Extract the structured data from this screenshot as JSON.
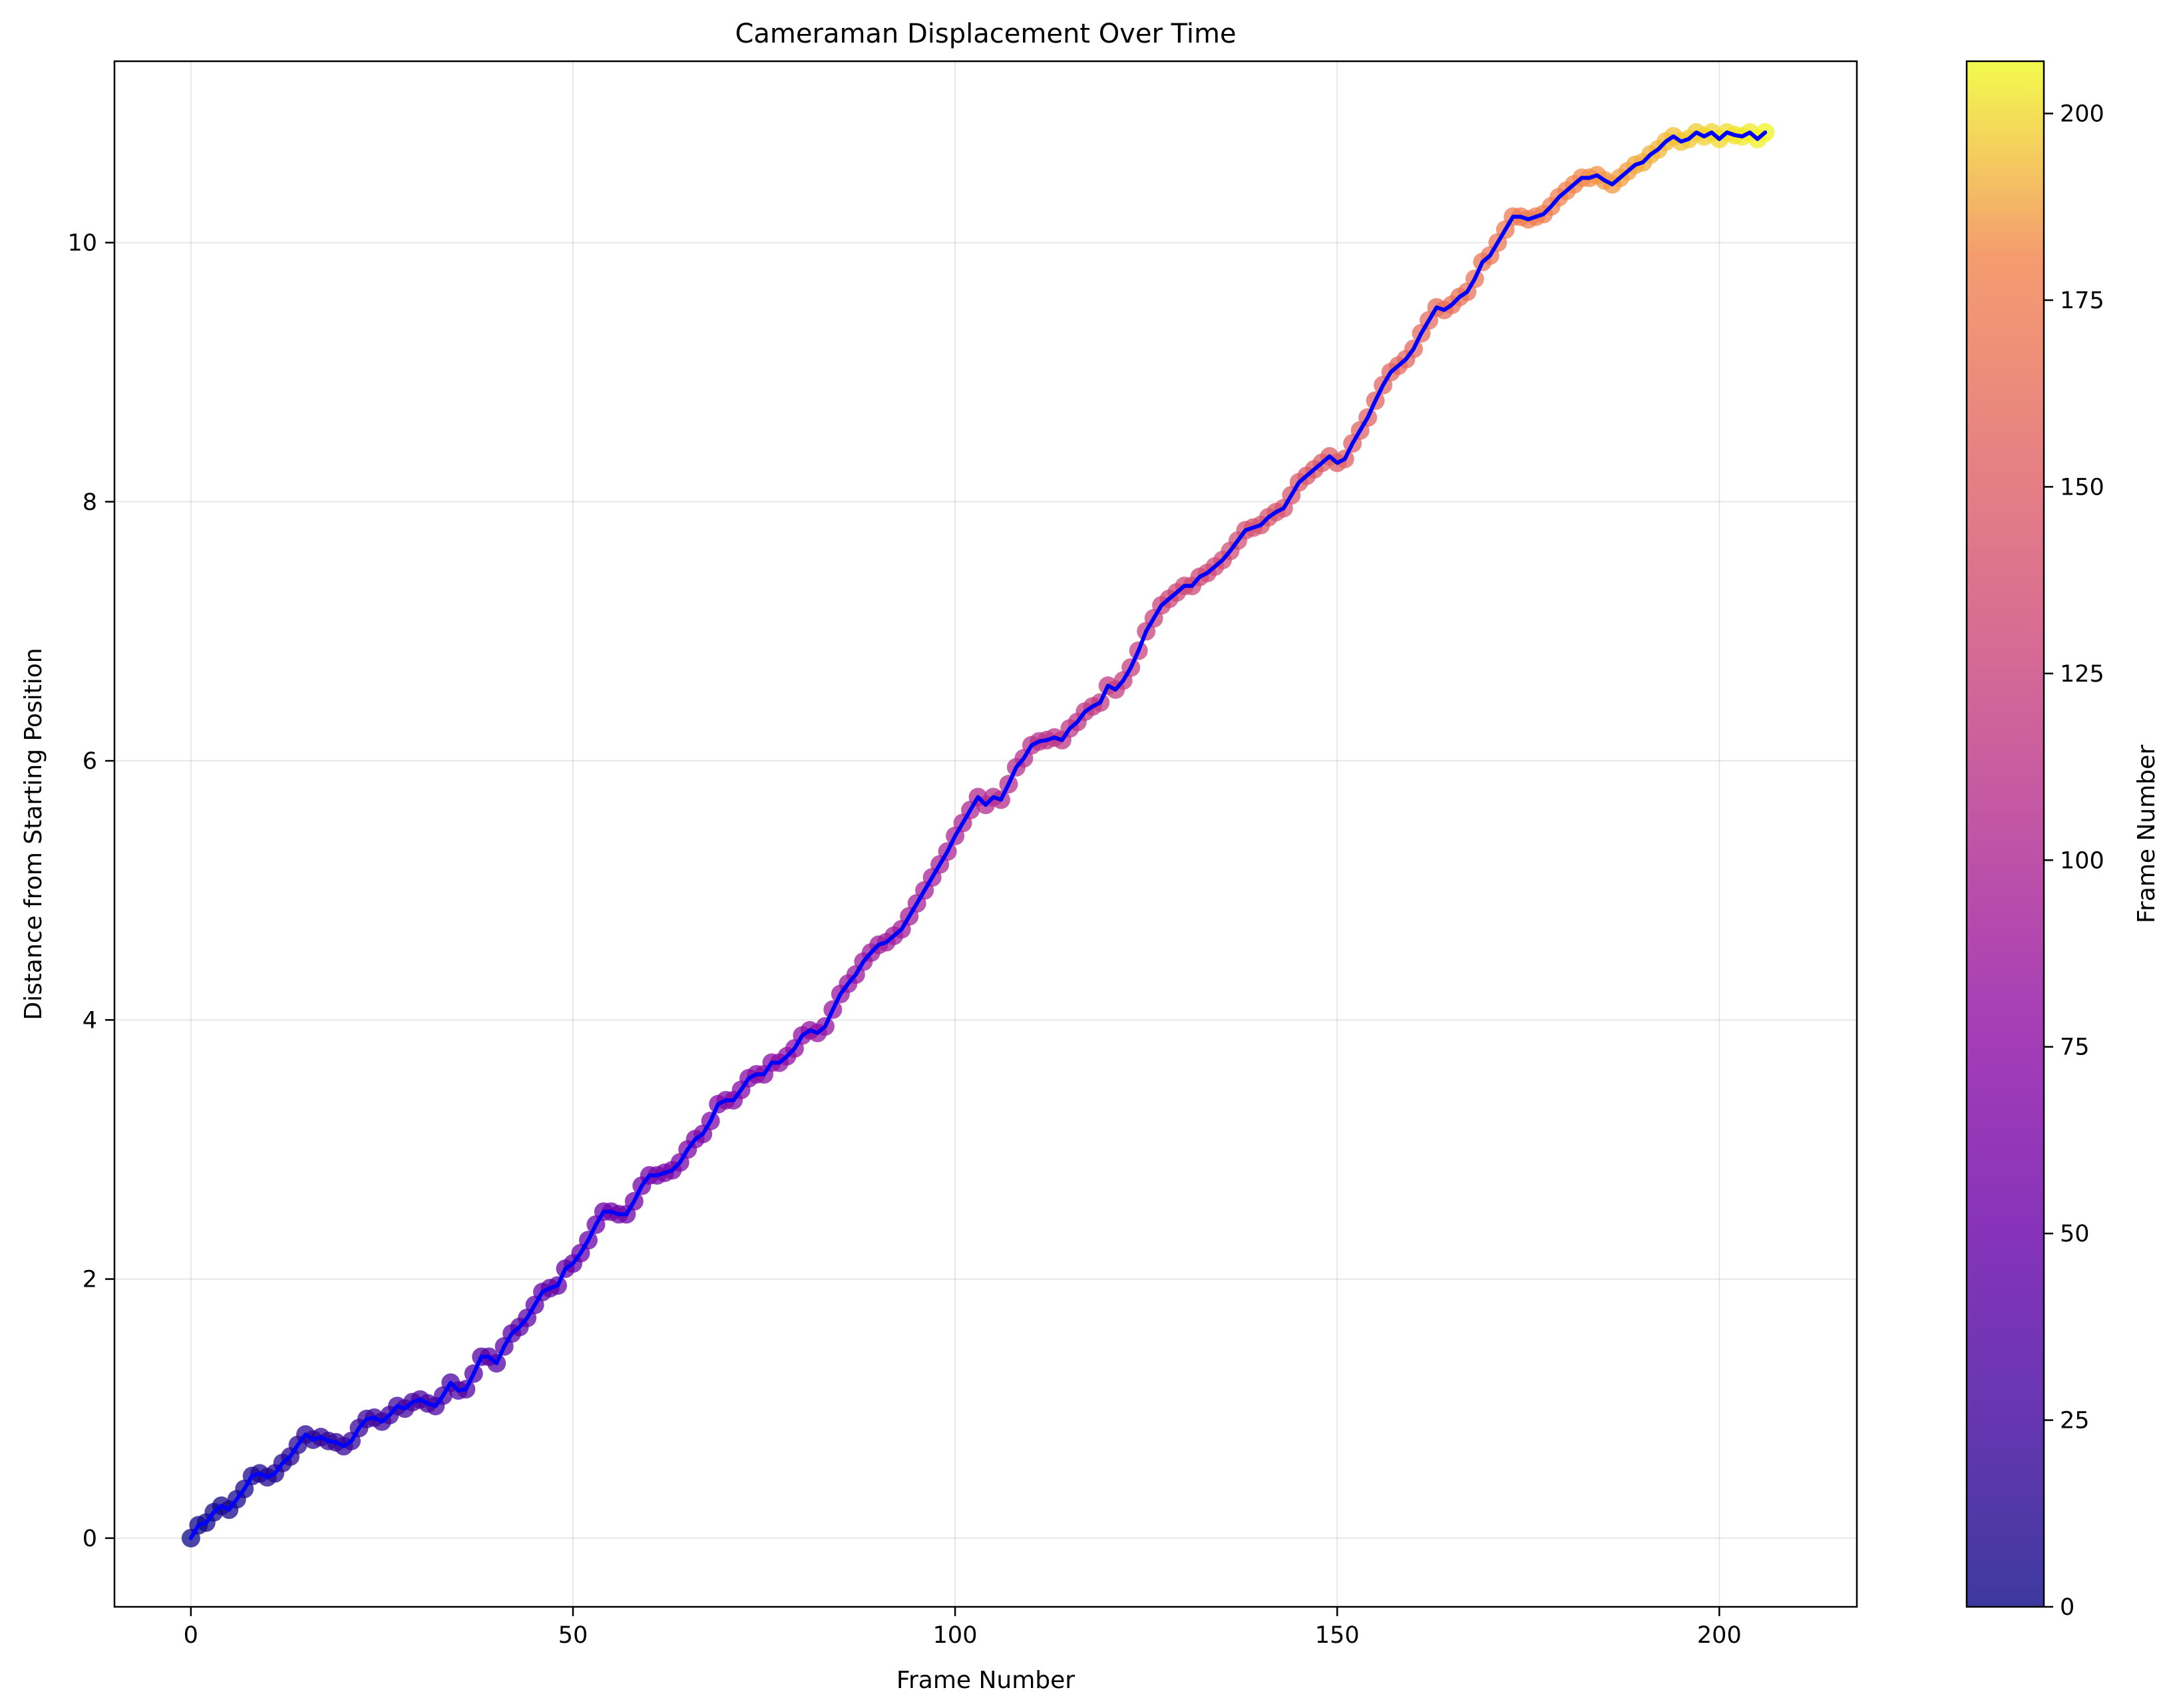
{
  "chart_data": {
    "type": "scatter",
    "title": "Cameraman Displacement Over Time",
    "xlabel": "Frame Number",
    "ylabel": "Distance from Starting Position",
    "xlim": [
      -10,
      218
    ],
    "ylim": [
      -0.53,
      11.4
    ],
    "xticks": [
      0,
      50,
      100,
      150,
      200
    ],
    "yticks": [
      0,
      2,
      4,
      6,
      8,
      10
    ],
    "grid": true,
    "line_color": "#0000ff",
    "colormap": "plasma",
    "colorbar": {
      "label": "Frame Number",
      "range": [
        0,
        207
      ],
      "ticks": [
        0,
        25,
        50,
        75,
        100,
        125,
        150,
        175,
        200
      ]
    },
    "frames_start": 0,
    "values": [
      0.0,
      0.1,
      0.12,
      0.2,
      0.25,
      0.22,
      0.3,
      0.38,
      0.48,
      0.5,
      0.47,
      0.5,
      0.58,
      0.63,
      0.72,
      0.8,
      0.76,
      0.78,
      0.75,
      0.74,
      0.71,
      0.75,
      0.85,
      0.92,
      0.93,
      0.9,
      0.95,
      1.02,
      1.0,
      1.05,
      1.07,
      1.04,
      1.02,
      1.1,
      1.2,
      1.14,
      1.15,
      1.27,
      1.4,
      1.4,
      1.35,
      1.48,
      1.58,
      1.63,
      1.7,
      1.8,
      1.9,
      1.93,
      1.95,
      2.08,
      2.12,
      2.2,
      2.3,
      2.42,
      2.52,
      2.52,
      2.5,
      2.5,
      2.6,
      2.72,
      2.8,
      2.8,
      2.82,
      2.84,
      2.9,
      3.0,
      3.08,
      3.12,
      3.22,
      3.35,
      3.38,
      3.38,
      3.46,
      3.55,
      3.58,
      3.58,
      3.67,
      3.67,
      3.72,
      3.78,
      3.88,
      3.92,
      3.9,
      3.95,
      4.08,
      4.2,
      4.28,
      4.35,
      4.45,
      4.52,
      4.58,
      4.6,
      4.65,
      4.7,
      4.8,
      4.9,
      5.0,
      5.1,
      5.2,
      5.3,
      5.42,
      5.52,
      5.62,
      5.72,
      5.66,
      5.72,
      5.7,
      5.82,
      5.95,
      6.02,
      6.12,
      6.15,
      6.16,
      6.18,
      6.16,
      6.25,
      6.3,
      6.38,
      6.42,
      6.45,
      6.58,
      6.55,
      6.62,
      6.72,
      6.85,
      7.0,
      7.1,
      7.2,
      7.25,
      7.3,
      7.35,
      7.35,
      7.42,
      7.45,
      7.5,
      7.55,
      7.62,
      7.7,
      7.78,
      7.8,
      7.82,
      7.88,
      7.92,
      7.95,
      8.05,
      8.15,
      8.2,
      8.25,
      8.3,
      8.35,
      8.3,
      8.33,
      8.45,
      8.55,
      8.65,
      8.78,
      8.9,
      9.0,
      9.05,
      9.1,
      9.18,
      9.3,
      9.4,
      9.5,
      9.48,
      9.52,
      9.58,
      9.62,
      9.72,
      9.85,
      9.9,
      10.0,
      10.1,
      10.2,
      10.2,
      10.18,
      10.2,
      10.22,
      10.28,
      10.35,
      10.4,
      10.45,
      10.5,
      10.5,
      10.52,
      10.48,
      10.45,
      10.5,
      10.55,
      10.6,
      10.62,
      10.68,
      10.72,
      10.78,
      10.82,
      10.78,
      10.8,
      10.85,
      10.82,
      10.85,
      10.8,
      10.85,
      10.83,
      10.82,
      10.85,
      10.8,
      10.85
    ]
  }
}
